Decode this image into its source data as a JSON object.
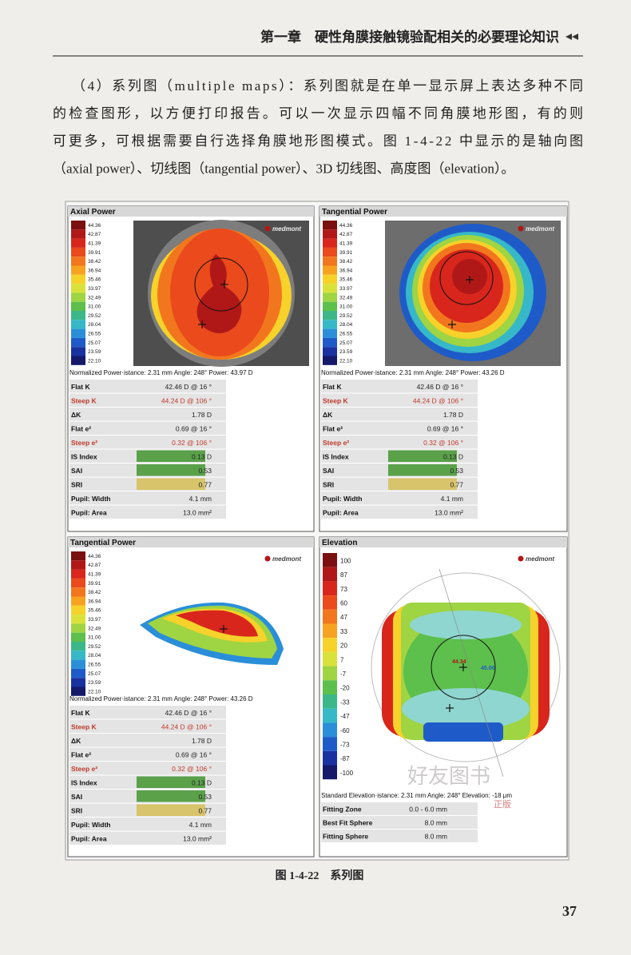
{
  "header": {
    "title": "第一章　硬性角膜接触镜验配相关的必要理论知识"
  },
  "body": {
    "lines": [
      "（4）系列图（multiple maps）：系列图就是在单一显示屏上表达多种不同",
      "的检查图形，以方便打印报告。可以一次显示四幅不同角膜地形图，有的则",
      "可更多，可根据需要自行选择角膜地形图模式。图 1-4-22 中显示的是轴向图",
      "（axial power）、切线图（tangential power）、3D 切线图、高度图（elevation）。"
    ]
  },
  "figure": {
    "caption": "图 1-4-22　系列图",
    "panels": [
      {
        "title": "Axial Power",
        "logo": "medmont",
        "scale": [
          "44.36",
          "42.87",
          "41.39",
          "39.91",
          "38.42",
          "36.94",
          "35.46",
          "33.97",
          "32.49",
          "31.00",
          "29.52",
          "28.04",
          "26.55",
          "25.07",
          "23.59",
          "22.10"
        ],
        "status": "Normalized Power·istance: 2.31 mm Angle: 248° Power: 43.97 D",
        "rows": [
          {
            "label": "Flat K",
            "value": "42.46 D @ 16 °"
          },
          {
            "label": "Steep K",
            "value": "44.24 D @ 106 °",
            "color": "#c0392b"
          },
          {
            "label": "ΔK",
            "value": "1.78 D"
          },
          {
            "label": "Flat e²",
            "value": "0.69 @ 16 °"
          },
          {
            "label": "Steep e²",
            "value": "0.32 @ 106 °",
            "color": "#c0392b"
          },
          {
            "label": "IS Index",
            "value": "0.13 D",
            "fill": "#5aa14a"
          },
          {
            "label": "SAI",
            "value": "0.53",
            "fill": "#5aa14a"
          },
          {
            "label": "SRI",
            "value": "0.77",
            "fill": "#d8c46a"
          },
          {
            "label": "Pupil: Width",
            "value": "4.1 mm"
          },
          {
            "label": "Pupil: Area",
            "value": "13.0 mm²"
          }
        ]
      },
      {
        "title": "Tangential Power",
        "logo": "medmont",
        "scale": [
          "44.36",
          "42.87",
          "41.39",
          "39.91",
          "38.42",
          "36.94",
          "35.46",
          "33.97",
          "32.49",
          "31.00",
          "29.52",
          "28.04",
          "26.55",
          "25.07",
          "23.59",
          "22.10"
        ],
        "status": "Normalized Power·istance: 2.31 mm Angle: 248° Power: 43.26 D",
        "rows": [
          {
            "label": "Flat K",
            "value": "42.46 D @ 16 °"
          },
          {
            "label": "Steep K",
            "value": "44.24 D @ 106 °",
            "color": "#c0392b"
          },
          {
            "label": "ΔK",
            "value": "1.78 D"
          },
          {
            "label": "Flat e²",
            "value": "0.69 @ 16 °"
          },
          {
            "label": "Steep e²",
            "value": "0.32 @ 106 °",
            "color": "#c0392b"
          },
          {
            "label": "IS Index",
            "value": "0.13 D",
            "fill": "#5aa14a"
          },
          {
            "label": "SAI",
            "value": "0.53",
            "fill": "#5aa14a"
          },
          {
            "label": "SRI",
            "value": "0.77",
            "fill": "#d8c46a"
          },
          {
            "label": "Pupil: Width",
            "value": "4.1 mm"
          },
          {
            "label": "Pupil: Area",
            "value": "13.0 mm²"
          }
        ]
      },
      {
        "title": "Tangential Power",
        "logo": "medmont",
        "scale": [
          "44.36",
          "42.87",
          "41.39",
          "39.91",
          "38.42",
          "36.94",
          "35.46",
          "33.97",
          "32.49",
          "31.00",
          "29.52",
          "28.04",
          "26.55",
          "25.07",
          "23.59",
          "22.10"
        ],
        "status": "Normalized Power·istance: 2.31 mm Angle: 248° Power: 43.26 D",
        "rows": [
          {
            "label": "Flat K",
            "value": "42.46 D @ 16 °"
          },
          {
            "label": "Steep K",
            "value": "44.24 D @ 106 °",
            "color": "#c0392b"
          },
          {
            "label": "ΔK",
            "value": "1.78 D"
          },
          {
            "label": "Flat e²",
            "value": "0.69 @ 16 °"
          },
          {
            "label": "Steep e²",
            "value": "0.32 @ 106 °",
            "color": "#c0392b"
          },
          {
            "label": "IS Index",
            "value": "0.13 D",
            "fill": "#5aa14a"
          },
          {
            "label": "SAI",
            "value": "0.53",
            "fill": "#5aa14a"
          },
          {
            "label": "SRI",
            "value": "0.77",
            "fill": "#d8c46a"
          },
          {
            "label": "Pupil: Width",
            "value": "4.1 mm"
          },
          {
            "label": "Pupil: Area",
            "value": "13.0 mm²"
          }
        ]
      },
      {
        "title": "Elevation",
        "logo": "medmont",
        "scale": [
          "100",
          "87",
          "73",
          "60",
          "47",
          "33",
          "20",
          "7",
          "-7",
          "-20",
          "-33",
          "-47",
          "-60",
          "-73",
          "-87",
          "-100"
        ],
        "status": "Standard Elevation·istance: 2.31 mm Angle: 248° Elevation: -18 μm",
        "map_labels": [
          "44.34",
          "45.00"
        ],
        "rows": [
          {
            "label": "Fitting Zone",
            "value": "0.0 - 6.0 mm"
          },
          {
            "label": "Best Fit Sphere",
            "value": "8.0 mm"
          },
          {
            "label": "Fitting Sphere",
            "value": "8.0 mm"
          }
        ]
      }
    ]
  },
  "watermark": {
    "title": "好友图书",
    "stamp": "正版"
  },
  "footer": {
    "page_number": "37"
  }
}
